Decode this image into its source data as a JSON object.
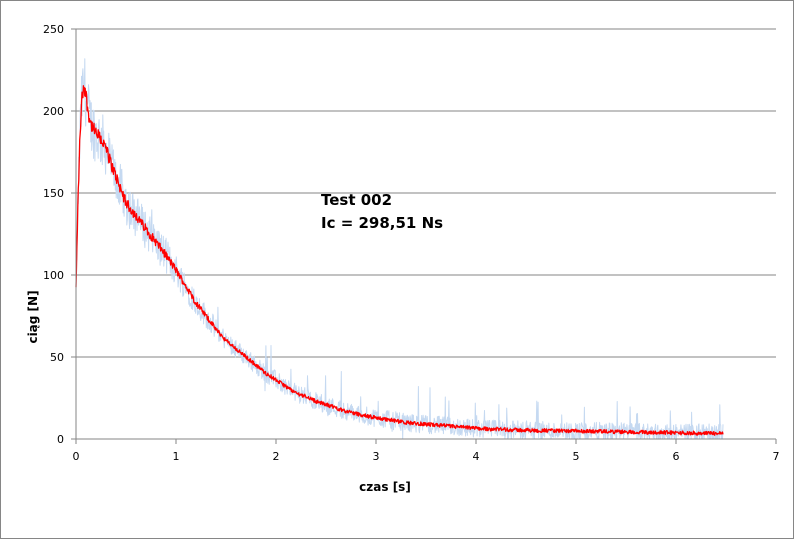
{
  "chart_data": {
    "type": "line",
    "xlabel": "czas [s]",
    "ylabel": "ciąg [N]",
    "xlim": [
      0,
      7
    ],
    "ylim": [
      0,
      250
    ],
    "x_ticks": [
      0,
      1,
      2,
      3,
      4,
      5,
      6,
      7
    ],
    "y_ticks": [
      0,
      50,
      100,
      150,
      200,
      250
    ],
    "grid": "horizontal",
    "legend": "none",
    "annotations": [
      "Test 002",
      "Ic = 298,51 Ns"
    ],
    "colors": {
      "main": "#ff0000",
      "raw": "#c5d9f1"
    },
    "series": [
      {
        "role": "smoothed",
        "x": [
          0.0,
          0.02,
          0.04,
          0.06,
          0.08,
          0.1,
          0.12,
          0.15,
          0.2,
          0.25,
          0.3,
          0.35,
          0.4,
          0.45,
          0.5,
          0.6,
          0.7,
          0.8,
          0.9,
          1.0,
          1.1,
          1.2,
          1.3,
          1.4,
          1.5,
          1.6,
          1.7,
          1.8,
          1.9,
          2.0,
          2.1,
          2.2,
          2.3,
          2.4,
          2.5,
          2.6,
          2.7,
          2.8,
          2.9,
          3.0,
          3.1,
          3.2,
          3.3,
          3.4,
          3.5,
          3.6,
          3.7,
          3.8,
          3.9,
          4.0,
          4.2,
          4.4,
          4.6,
          4.8,
          5.0,
          5.2,
          5.4,
          5.6,
          5.8,
          6.0,
          6.2,
          6.4,
          6.47
        ],
        "y": [
          92,
          145,
          185,
          208,
          216,
          210,
          200,
          192,
          186,
          183,
          177,
          168,
          160,
          152,
          144,
          136,
          128,
          120,
          112,
          103,
          93,
          83,
          75,
          67,
          60,
          55,
          50,
          45,
          40,
          36,
          32,
          28,
          26,
          23,
          21,
          19,
          17,
          15.5,
          14,
          13,
          12,
          11,
          10,
          9.5,
          9,
          8.5,
          8,
          7.5,
          7,
          6.5,
          6,
          5.5,
          5.2,
          5,
          4.8,
          4.6,
          4.4,
          4.2,
          4,
          3.8,
          3.6,
          3.5,
          3.4
        ]
      }
    ]
  }
}
